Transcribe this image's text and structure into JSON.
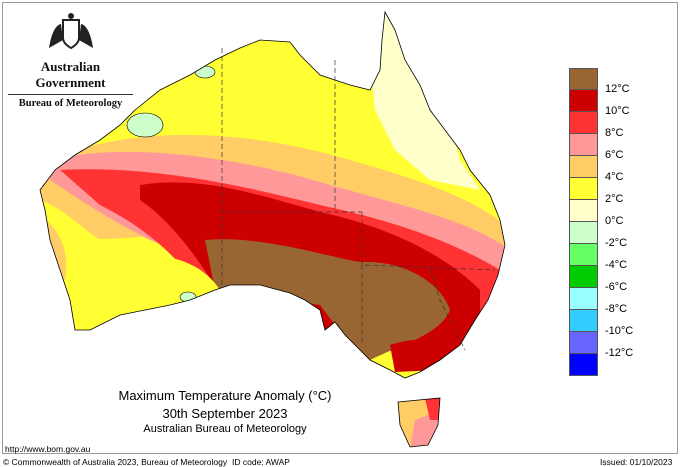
{
  "logo": {
    "line1": "Australian Government",
    "line2": "Bureau of Meteorology",
    "emblem": "coat-of-arms"
  },
  "title": {
    "main": "Maximum Temperature Anomaly (°C)",
    "date": "30th September 2023",
    "source": "Australian Bureau of Meteorology"
  },
  "footer": {
    "url": "http://www.bom.gov.au",
    "copyright": "© Commonwealth of Australia 2023, Bureau of Meteorology",
    "id_code": "ID code: AWAP",
    "issued": "Issued: 01/10/2023"
  },
  "legend": {
    "colors": [
      "#996633",
      "#cc0000",
      "#ff3333",
      "#ff9999",
      "#ffcc66",
      "#ffff33",
      "#ffffcc",
      "#ccffcc",
      "#66ff66",
      "#00cc00",
      "#99ffff",
      "#33ccff",
      "#6666ff",
      "#0000ff"
    ],
    "labels": [
      "12°C",
      "10°C",
      "8°C",
      "6°C",
      "4°C",
      "2°C",
      "0°C",
      "-2°C",
      "-4°C",
      "-6°C",
      "-8°C",
      "-10°C",
      "-12°C"
    ]
  }
}
